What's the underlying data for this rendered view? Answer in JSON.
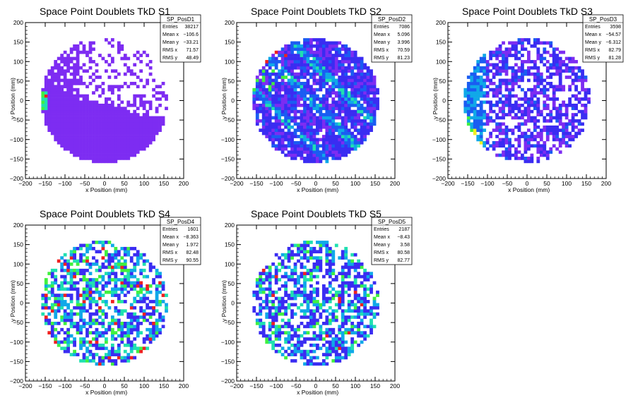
{
  "chart_data": [
    {
      "type": "heatmap",
      "title": "Space Point Doublets TkD S1",
      "xlabel": "x Position (mm)",
      "ylabel": "y Position (mm)",
      "xlim": [
        -200,
        200
      ],
      "ylim": [
        -200,
        200
      ],
      "xticks": [
        -200,
        -150,
        -100,
        -50,
        0,
        50,
        100,
        150,
        200
      ],
      "yticks": [
        -200,
        -150,
        -100,
        -50,
        0,
        50,
        100,
        150,
        200
      ],
      "grid": false,
      "stats": {
        "name": "SP_PosD1",
        "rows": [
          {
            "label": "Entries",
            "value": "38217"
          },
          {
            "label": "Mean x",
            "value": "−106.6"
          },
          {
            "label": "Mean y",
            "value": "−33.21"
          },
          {
            "label": "RMS x",
            "value": "71.57"
          },
          {
            "label": "RMS y",
            "value": "48.49"
          }
        ]
      },
      "pattern": "s1",
      "colors": [
        "#7d2cf2",
        "#3a2cf2",
        "#1a5cf2",
        "#10a8e8",
        "#20e0b0",
        "#40f040",
        "#f0f020",
        "#f02020"
      ]
    },
    {
      "type": "heatmap",
      "title": "Space Point Doublets TkD S2",
      "xlabel": "x Position (mm)",
      "ylabel": "y Position (mm)",
      "xlim": [
        -200,
        200
      ],
      "ylim": [
        -200,
        200
      ],
      "xticks": [
        -200,
        -150,
        -100,
        -50,
        0,
        50,
        100,
        150,
        200
      ],
      "yticks": [
        -200,
        -150,
        -100,
        -50,
        0,
        50,
        100,
        150,
        200
      ],
      "grid": false,
      "stats": {
        "name": "SP_PosD2",
        "rows": [
          {
            "label": "Entries",
            "value": "7086"
          },
          {
            "label": "Mean x",
            "value": "5.096"
          },
          {
            "label": "Mean y",
            "value": "3.996"
          },
          {
            "label": "RMS x",
            "value": "70.59"
          },
          {
            "label": "RMS y",
            "value": "81.23"
          }
        ]
      },
      "pattern": "s2",
      "colors": [
        "#7d2cf2",
        "#3a2cf2",
        "#1a5cf2",
        "#10a8e8",
        "#20e0b0",
        "#40f040",
        "#f0f020",
        "#f02020"
      ]
    },
    {
      "type": "heatmap",
      "title": "Space Point Doublets TkD S3",
      "xlabel": "x Position (mm)",
      "ylabel": "y Position (mm)",
      "xlim": [
        -200,
        200
      ],
      "ylim": [
        -200,
        200
      ],
      "xticks": [
        -200,
        -150,
        -100,
        -50,
        0,
        50,
        100,
        150,
        200
      ],
      "yticks": [
        -200,
        -150,
        -100,
        -50,
        0,
        50,
        100,
        150,
        200
      ],
      "grid": false,
      "stats": {
        "name": "SP_PosD3",
        "rows": [
          {
            "label": "Entries",
            "value": "3598"
          },
          {
            "label": "Mean x",
            "value": "−54.57"
          },
          {
            "label": "Mean y",
            "value": "−6.312"
          },
          {
            "label": "RMS x",
            "value": "82.79"
          },
          {
            "label": "RMS y",
            "value": "81.28"
          }
        ]
      },
      "pattern": "s3",
      "colors": [
        "#7d2cf2",
        "#3a2cf2",
        "#1a5cf2",
        "#10a8e8",
        "#20e0b0",
        "#40f040",
        "#f0f020",
        "#f02020"
      ]
    },
    {
      "type": "heatmap",
      "title": "Space Point Doublets TkD S4",
      "xlabel": "x Position (mm)",
      "ylabel": "y Position (mm)",
      "xlim": [
        -200,
        200
      ],
      "ylim": [
        -200,
        200
      ],
      "xticks": [
        -200,
        -150,
        -100,
        -50,
        0,
        50,
        100,
        150,
        200
      ],
      "yticks": [
        -200,
        -150,
        -100,
        -50,
        0,
        50,
        100,
        150,
        200
      ],
      "grid": false,
      "stats": {
        "name": "SP_PosD4",
        "rows": [
          {
            "label": "Entries",
            "value": "1601"
          },
          {
            "label": "Mean x",
            "value": "−8.363"
          },
          {
            "label": "Mean y",
            "value": "1.972"
          },
          {
            "label": "RMS x",
            "value": "82.48"
          },
          {
            "label": "RMS y",
            "value": "90.55"
          }
        ]
      },
      "pattern": "s4",
      "colors": [
        "#7d2cf2",
        "#3a2cf2",
        "#1a5cf2",
        "#10a8e8",
        "#20e0b0",
        "#40f040",
        "#f0f020",
        "#f02020"
      ]
    },
    {
      "type": "heatmap",
      "title": "Space Point Doublets TkD S5",
      "xlabel": "x Position (mm)",
      "ylabel": "y Position (mm)",
      "xlim": [
        -200,
        200
      ],
      "ylim": [
        -200,
        200
      ],
      "xticks": [
        -200,
        -150,
        -100,
        -50,
        0,
        50,
        100,
        150,
        200
      ],
      "yticks": [
        -200,
        -150,
        -100,
        -50,
        0,
        50,
        100,
        150,
        200
      ],
      "grid": false,
      "stats": {
        "name": "SP_PosD5",
        "rows": [
          {
            "label": "Entries",
            "value": "2187"
          },
          {
            "label": "Mean x",
            "value": "−8.43"
          },
          {
            "label": "Mean y",
            "value": "3.58"
          },
          {
            "label": "RMS x",
            "value": "80.58"
          },
          {
            "label": "RMS y",
            "value": "82.77"
          }
        ]
      },
      "pattern": "s5",
      "colors": [
        "#7d2cf2",
        "#3a2cf2",
        "#1a5cf2",
        "#10a8e8",
        "#20e0b0",
        "#40f040",
        "#f0f020",
        "#f02020"
      ]
    }
  ]
}
